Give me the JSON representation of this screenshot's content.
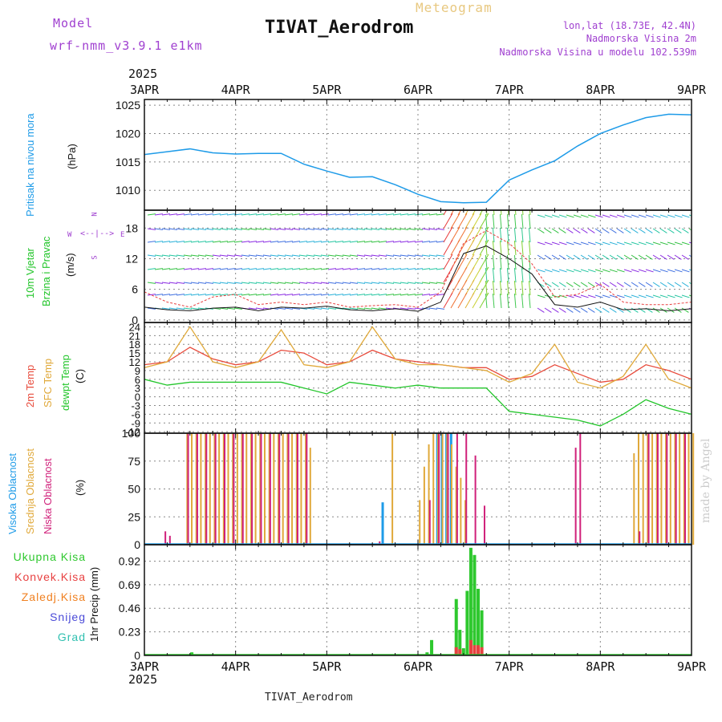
{
  "header": {
    "model_label": "Model",
    "model_name": "wrf-nmm_v3.9.1 e1km",
    "title": "TIVAT_Aerodrom",
    "meteogram_label": "Meteogram",
    "lonlat": "lon,lat (18.73E, 42.4N)",
    "elevation": "Nadmorska Visina 2m",
    "model_elevation": "Nadmorska Visina u modelu 102.539m",
    "year_top": "2025",
    "year_bottom": "2025",
    "footer_station": "TIVAT_Aerodrom",
    "credit": "made by Angel"
  },
  "colors": {
    "pressure": "#1e9be8",
    "temp2m": "#e84b3c",
    "sfc_temp": "#e0a93a",
    "dewpoint": "#22c52a",
    "cloud_high": "#1e9be8",
    "cloud_mid": "#e0a93a",
    "cloud_low": "#d0207a",
    "precip_total": "#2ec82e",
    "precip_conv": "#e84040",
    "precip_frozen": "#f08020",
    "snow": "#4a4ad8",
    "hail": "#30c0b0",
    "title_purple": "#a040d0",
    "meteogram_gold": "#e8c880"
  },
  "chart_data": [
    {
      "type": "line",
      "name": "pressure",
      "ylabel_main": "Pritisak na nivou mora",
      "ylabel_unit": "(hPa)",
      "x_ticks": [
        "3APR",
        "4APR",
        "5APR",
        "6APR",
        "7APR",
        "8APR",
        "9APR"
      ],
      "y_ticks": [
        1010,
        1015,
        1020,
        1025
      ],
      "ylim": [
        1006.5,
        1026
      ],
      "x_days": [
        0,
        0.25,
        0.5,
        0.75,
        1,
        1.25,
        1.5,
        1.75,
        2,
        2.25,
        2.5,
        2.75,
        3,
        3.25,
        3.5,
        3.75,
        4,
        4.25,
        4.5,
        4.75,
        5,
        5.25,
        5.5,
        5.75,
        6
      ],
      "values": [
        1016.3,
        1016.8,
        1017.3,
        1016.6,
        1016.4,
        1016.5,
        1016.5,
        1014.6,
        1013.4,
        1012.3,
        1012.4,
        1011.0,
        1009.3,
        1008.0,
        1007.8,
        1007.9,
        1011.8,
        1013.6,
        1015.2,
        1017.8,
        1020.0,
        1021.5,
        1022.8,
        1023.4,
        1023.3
      ]
    },
    {
      "type": "line",
      "name": "wind",
      "ylabel_main": "10m Vjetar",
      "ylabel_sub": "Brzina i Pravac",
      "ylabel_unit": "(m/s)",
      "compass": {
        "n": "N",
        "s": "S",
        "e": "E",
        "w": "W"
      },
      "y_ticks": [
        0,
        6,
        12,
        18
      ],
      "ylim": [
        -0.5,
        21.5
      ],
      "x_days": [
        0,
        0.25,
        0.5,
        0.75,
        1,
        1.25,
        1.5,
        1.75,
        2,
        2.25,
        2.5,
        2.75,
        3,
        3.25,
        3.5,
        3.75,
        4,
        4.25,
        4.5,
        4.75,
        5,
        5.25,
        5.5,
        5.75,
        6
      ],
      "speed": [
        2.5,
        2.0,
        1.8,
        2.3,
        2.5,
        1.8,
        2.5,
        2.3,
        2.7,
        2.0,
        1.8,
        2.2,
        1.7,
        3.5,
        13.0,
        14.5,
        12.0,
        9.0,
        3.0,
        2.5,
        3.5,
        2.0,
        2.2,
        1.8,
        2.2
      ],
      "gust": [
        5.5,
        3.5,
        2.5,
        4.5,
        5.0,
        3.0,
        3.5,
        3.0,
        3.5,
        2.5,
        2.8,
        3.0,
        2.5,
        5.5,
        15.0,
        17.5,
        15.0,
        11.0,
        4.5,
        5.0,
        7.0,
        3.5,
        3.0,
        3.0,
        3.5
      ]
    },
    {
      "type": "line",
      "name": "temperature",
      "ylabel_a": "2m Temp",
      "ylabel_b": "SFC Temp",
      "ylabel_c": "dewpt Temp",
      "ylabel_unit": "(C)",
      "y_ticks": [
        -12,
        -9,
        -6,
        -3,
        0,
        3,
        6,
        9,
        12,
        15,
        18,
        21,
        24
      ],
      "ylim": [
        -12.5,
        25.5
      ],
      "x_days": [
        0,
        0.25,
        0.5,
        0.75,
        1,
        1.25,
        1.5,
        1.75,
        2,
        2.25,
        2.5,
        2.75,
        3,
        3.25,
        3.5,
        3.75,
        4,
        4.25,
        4.5,
        4.75,
        5,
        5.25,
        5.5,
        5.75,
        6
      ],
      "series": [
        {
          "name": "2m Temp",
          "values": [
            11,
            12,
            17,
            13,
            11,
            12,
            16,
            15,
            11,
            12,
            16,
            13,
            12,
            11,
            10,
            10,
            6,
            7,
            11,
            8,
            5,
            6,
            11,
            9,
            6
          ]
        },
        {
          "name": "SFC Temp",
          "values": [
            10,
            12,
            24,
            12,
            10,
            12,
            23,
            11,
            10,
            12,
            24,
            13,
            11,
            11,
            10,
            9,
            5,
            8,
            18,
            5,
            3,
            7,
            18,
            6,
            3
          ]
        },
        {
          "name": "dewpt Temp",
          "values": [
            6,
            4,
            5,
            5,
            5,
            5,
            5,
            3,
            1,
            5,
            4,
            3,
            4,
            3,
            3,
            3,
            -5,
            -6,
            -7,
            -8,
            -10,
            -6,
            -1,
            -4,
            -6
          ]
        }
      ]
    },
    {
      "type": "bar",
      "name": "cloud",
      "ylabel_a": "Visoka Oblacnost",
      "ylabel_b": "Srednja Oblacnost",
      "ylabel_c": "Niska Oblacnost",
      "ylabel_unit": "(%)",
      "y_ticks": [
        0,
        25,
        50,
        75,
        100
      ],
      "ylim": [
        0,
        100
      ],
      "series": [
        {
          "name": "Visoka Oblacnost",
          "x_days": [
            2.6,
            3.2,
            3.25,
            3.3,
            3.35
          ],
          "values": [
            38,
            100,
            100,
            100,
            100
          ]
        },
        {
          "name": "Srednja Oblacnost",
          "x_days": [
            0.45,
            0.5,
            0.55,
            0.6,
            0.65,
            0.7,
            0.75,
            0.8,
            0.85,
            0.9,
            0.95,
            1.0,
            1.05,
            1.1,
            1.15,
            1.2,
            1.25,
            1.3,
            1.35,
            1.4,
            1.45,
            1.5,
            1.55,
            1.6,
            1.65,
            1.7,
            1.75,
            1.8,
            2.7,
            3.0,
            3.05,
            3.1,
            3.15,
            3.2,
            3.25,
            3.3,
            3.35,
            3.4,
            3.45,
            3.5,
            5.35,
            5.4,
            5.45,
            5.5,
            5.55,
            5.6,
            5.65,
            5.7,
            5.75,
            5.8,
            5.85,
            5.9,
            5.95,
            6.0
          ],
          "values": [
            100,
            100,
            100,
            100,
            100,
            100,
            100,
            100,
            100,
            100,
            100,
            100,
            100,
            100,
            100,
            100,
            100,
            100,
            100,
            100,
            100,
            100,
            100,
            100,
            100,
            100,
            100,
            87,
            100,
            40,
            70,
            90,
            100,
            100,
            100,
            100,
            90,
            70,
            60,
            40,
            82,
            100,
            100,
            100,
            100,
            100,
            100,
            100,
            100,
            100,
            100,
            100,
            100,
            100
          ]
        },
        {
          "name": "Niska Oblacnost",
          "x_days": [
            0.2,
            0.25,
            0.45,
            0.55,
            0.65,
            0.75,
            0.85,
            0.95,
            1.05,
            1.15,
            1.25,
            1.35,
            1.45,
            1.55,
            1.65,
            1.75,
            2.55,
            3.1,
            3.2,
            3.3,
            3.4,
            3.5,
            3.6,
            3.7,
            4.7,
            4.75,
            5.4,
            5.5,
            5.6,
            5.7,
            5.8,
            5.9
          ],
          "values": [
            12,
            8,
            100,
            100,
            100,
            100,
            100,
            100,
            100,
            100,
            100,
            100,
            100,
            100,
            100,
            100,
            3,
            40,
            100,
            100,
            100,
            100,
            80,
            35,
            87,
            100,
            12,
            100,
            100,
            100,
            100,
            100
          ]
        }
      ]
    },
    {
      "type": "bar",
      "name": "precipitation",
      "ylabel_unit": "1hr Precip (mm)",
      "legend": [
        "Ukupna Kisa",
        "Konvek.Kisa",
        "Zaledj.Kisa",
        "Snijeg",
        "Grad"
      ],
      "y_ticks": [
        0,
        0.23,
        0.46,
        0.69,
        0.92
      ],
      "ylim": [
        0,
        1.08
      ],
      "x_ticks": [
        "3APR",
        "4APR",
        "5APR",
        "6APR",
        "7APR",
        "8APR",
        "9APR"
      ],
      "series": [
        {
          "name": "Ukupna Kisa",
          "x_days": [
            0.52,
            3.1,
            3.15,
            3.42,
            3.46,
            3.5,
            3.54,
            3.58,
            3.62,
            3.66,
            3.7
          ],
          "values": [
            0.03,
            0.03,
            0.15,
            0.55,
            0.25,
            0.07,
            0.63,
            1.05,
            0.98,
            0.65,
            0.44
          ]
        },
        {
          "name": "Konvek.Kisa",
          "x_days": [
            3.42,
            3.46,
            3.58,
            3.62,
            3.66,
            3.7
          ],
          "values": [
            0.08,
            0.06,
            0.15,
            0.1,
            0.1,
            0.08
          ]
        },
        {
          "name": "Zaledj.Kisa",
          "x_days": [
            0.52
          ],
          "values": [
            0.01
          ]
        },
        {
          "name": "Snijeg",
          "x_days": [],
          "values": []
        },
        {
          "name": "Grad",
          "x_days": [],
          "values": []
        }
      ]
    }
  ]
}
